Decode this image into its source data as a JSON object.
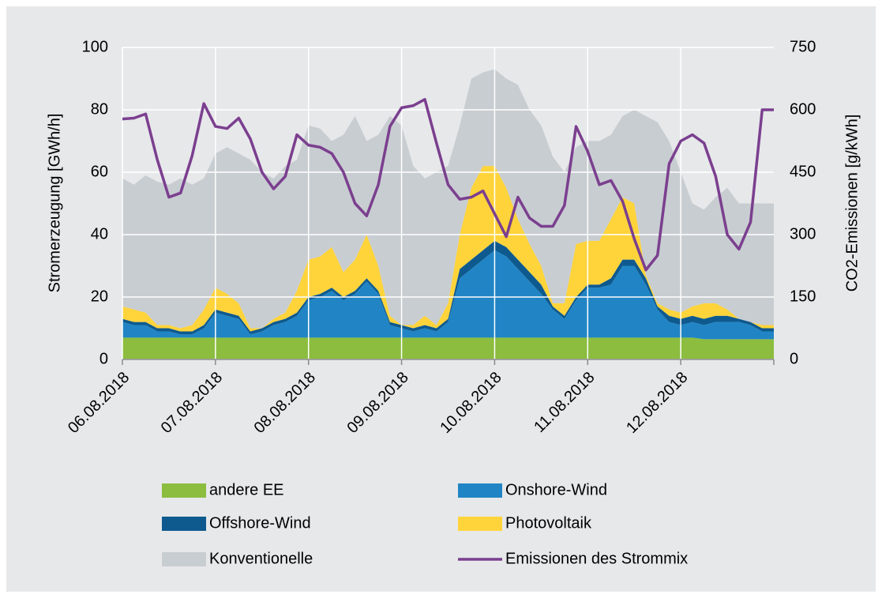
{
  "chart_data": {
    "type": "stacked_area_line",
    "ylabel": "Stromerzeugung [GWh/h]",
    "y2label": "CO2-Emissionen [g/kWh]",
    "categories": [
      "06.08.2018",
      null,
      null,
      null,
      null,
      null,
      null,
      null,
      "07.08.2018",
      null,
      null,
      null,
      null,
      null,
      null,
      null,
      "08.08.2018",
      null,
      null,
      null,
      null,
      null,
      null,
      null,
      "09.08.2018",
      null,
      null,
      null,
      null,
      null,
      null,
      null,
      "10.08.2018",
      null,
      null,
      null,
      null,
      null,
      null,
      null,
      "11.08.2018",
      null,
      null,
      null,
      null,
      null,
      null,
      null,
      "12.08.2018",
      null,
      null,
      null,
      null,
      null,
      null,
      null,
      null
    ],
    "ylim": [
      0,
      100
    ],
    "yticks": [
      0,
      20,
      40,
      60,
      80,
      100
    ],
    "y2lim": [
      0,
      750
    ],
    "y2ticks": [
      0,
      150,
      300,
      450,
      600,
      750
    ],
    "grid": true,
    "series": [
      {
        "name": "andere EE",
        "color": "#8cbd3f",
        "kind": "area",
        "values": [
          7,
          7,
          7,
          7,
          7,
          7,
          7,
          7,
          7,
          7,
          7,
          7,
          7,
          7,
          7,
          7,
          7,
          7,
          7,
          7,
          7,
          7,
          7,
          7,
          7,
          7,
          7,
          7,
          7,
          7,
          7,
          7,
          7,
          7,
          7,
          7,
          7,
          7,
          7,
          7,
          7,
          7,
          7,
          7,
          7,
          7,
          7,
          7,
          7,
          7,
          6.5,
          6.5,
          6.5,
          6.5,
          6.5,
          6.5,
          6.5
        ]
      },
      {
        "name": "Onshore-Wind",
        "color": "#2185c5",
        "kind": "area",
        "values": [
          5,
          4,
          4,
          2,
          2,
          1,
          1,
          3,
          8,
          7,
          6,
          1,
          2,
          4,
          5,
          7,
          12,
          13,
          15,
          12,
          14,
          18,
          14,
          4,
          3,
          2,
          3,
          2,
          5,
          19,
          22,
          25,
          28,
          26,
          22,
          18,
          14,
          9,
          6,
          12,
          16,
          16,
          17,
          23,
          23,
          17,
          9,
          5,
          4,
          5,
          4.5,
          5.5,
          5.5,
          5.5,
          4.5,
          2.5,
          2.5
        ]
      },
      {
        "name": "Offshore-Wind",
        "color": "#0e5a8f",
        "kind": "area",
        "values": [
          1,
          1,
          1,
          1,
          1,
          1,
          1,
          1,
          1,
          1,
          1,
          1,
          1,
          1,
          1,
          1,
          1,
          1,
          1,
          1,
          1,
          1,
          1,
          1,
          1,
          1,
          1,
          1,
          1,
          3,
          3,
          3,
          3,
          3,
          3,
          3,
          3,
          1,
          1,
          1,
          1,
          1,
          2,
          2,
          2,
          2,
          1,
          2,
          2,
          2,
          2,
          2,
          2,
          1,
          1,
          1,
          1
        ]
      },
      {
        "name": "Photovoltaik",
        "color": "#ffd43b",
        "kind": "area",
        "values": [
          4,
          4,
          3,
          1,
          1,
          1,
          2,
          5,
          7,
          6,
          4,
          1,
          0,
          1,
          2,
          7,
          12,
          12,
          13,
          8,
          10,
          14,
          8,
          2,
          0,
          1,
          3,
          1,
          5,
          11,
          23,
          27,
          24,
          19,
          13,
          9,
          6,
          1,
          4,
          17,
          14,
          14,
          19,
          20,
          18,
          1,
          1,
          2,
          2,
          3,
          5,
          4,
          2,
          0,
          0,
          1,
          1
        ]
      },
      {
        "name": "Konventionelle",
        "color": "#c8cdd1",
        "kind": "area",
        "values": [
          41,
          40,
          44,
          46,
          45,
          48,
          45,
          42,
          43,
          47,
          48,
          54,
          50,
          45,
          47,
          42,
          43,
          41,
          34,
          44,
          46,
          30,
          42,
          64,
          64,
          51,
          44,
          49,
          44,
          35,
          35,
          30,
          31,
          35,
          43,
          43,
          45,
          47,
          42,
          31,
          32,
          32,
          27,
          26,
          30,
          51,
          58,
          54,
          45,
          33,
          30,
          34,
          39,
          37,
          38,
          39,
          39
        ]
      },
      {
        "name": "Emissionen des Strommix",
        "color": "#7b3f8f",
        "kind": "line",
        "axis": "y2",
        "values": [
          578,
          580,
          590,
          480,
          390,
          400,
          490,
          615,
          560,
          555,
          580,
          530,
          450,
          410,
          440,
          540,
          515,
          510,
          495,
          450,
          375,
          345,
          420,
          560,
          605,
          610,
          625,
          520,
          420,
          385,
          390,
          405,
          350,
          295,
          390,
          340,
          320,
          320,
          370,
          560,
          500,
          420,
          430,
          380,
          290,
          215,
          250,
          470,
          525,
          540,
          520,
          440,
          300,
          265,
          330,
          600,
          600
        ]
      }
    ]
  }
}
